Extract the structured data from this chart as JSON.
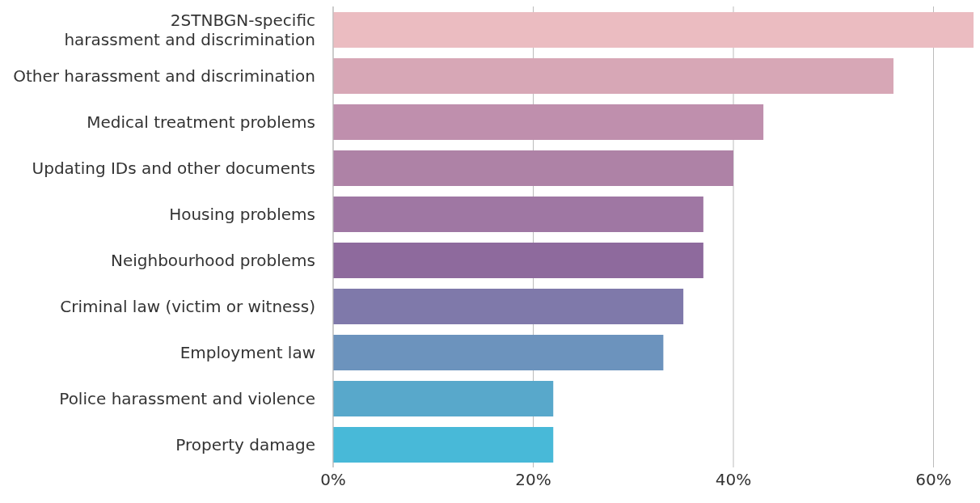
{
  "chart_data": {
    "type": "bar",
    "orientation": "horizontal",
    "categories": [
      "2STNBGN-specific\nharassment and discrimination",
      "Other harassment and discrimination",
      "Medical treatment problems",
      "Updating IDs and other documents",
      "Housing problems",
      "Neighbourhood problems",
      "Criminal law (victim or witness)",
      "Employment law",
      "Police harassment and violence",
      "Property damage"
    ],
    "values": [
      64,
      56,
      43,
      40,
      37,
      37,
      35,
      33,
      22,
      22
    ],
    "colors": [
      "#ebbcc1",
      "#d7a7b6",
      "#bf8fad",
      "#ae82a6",
      "#9f77a3",
      "#8e6a9d",
      "#7f79aa",
      "#6c93bd",
      "#58a8cb",
      "#48b9d8"
    ],
    "xlim": [
      0,
      64
    ],
    "xticks": [
      {
        "value": 0,
        "label": "0%"
      },
      {
        "value": 20,
        "label": "20%"
      },
      {
        "value": 40,
        "label": "40%"
      },
      {
        "value": 60,
        "label": "60%"
      }
    ],
    "grid": "x"
  }
}
